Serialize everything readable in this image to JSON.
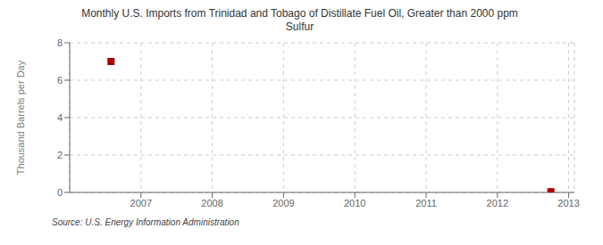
{
  "chart_data": {
    "type": "scatter",
    "title": "Monthly U.S. Imports from Trinidad and Tobago of Distillate Fuel Oil, Greater than 2000 ppm\nSulfur",
    "ylabel": "Thousand Barrels per Day",
    "annotations": [
      "Source: U.S. Energy Information Administration"
    ],
    "x": [
      2006.58,
      2012.75
    ],
    "values": [
      7.0,
      0.04
    ],
    "color": "#aa0000",
    "marker": "square",
    "xlim": [
      2006.0,
      2013.08
    ],
    "ylim": [
      0,
      8
    ],
    "xticks": [
      2007,
      2008,
      2009,
      2010,
      2011,
      2012,
      2013
    ],
    "yticks": [
      0,
      2,
      4,
      6,
      8
    ],
    "grid": true
  }
}
